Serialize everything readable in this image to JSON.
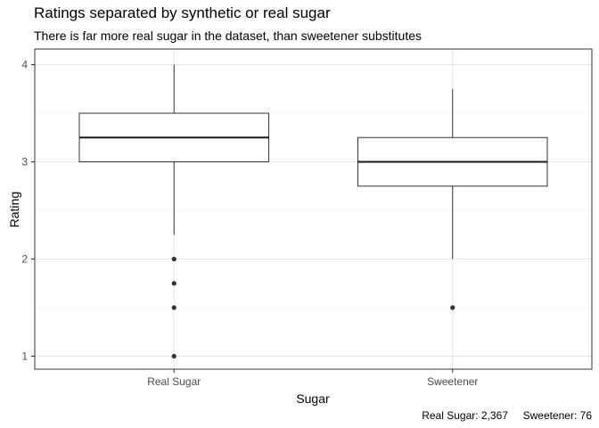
{
  "chart_data": {
    "type": "box",
    "title": "Ratings separated by synthetic or real sugar",
    "subtitle": "There is far more real sugar in the dataset, than sweetener substitutes",
    "xlabel": "Sugar",
    "ylabel": "Rating",
    "ylim": [
      0.85,
      4.15
    ],
    "y_ticks": [
      1,
      2,
      3,
      4
    ],
    "grid": true,
    "categories": [
      "Real Sugar",
      "Sweetener"
    ],
    "boxes": [
      {
        "category": "Real Sugar",
        "whisker_low": 2.25,
        "q1": 3.0,
        "median": 3.25,
        "q3": 3.5,
        "whisker_high": 4.0,
        "outliers": [
          2.0,
          1.75,
          1.5,
          1.0
        ]
      },
      {
        "category": "Sweetener",
        "whisker_low": 2.0,
        "q1": 2.75,
        "median": 3.0,
        "q3": 3.25,
        "whisker_high": 3.75,
        "outliers": [
          1.5
        ]
      }
    ],
    "caption": "Real Sugar: 2,367     Sweetener: 76"
  }
}
